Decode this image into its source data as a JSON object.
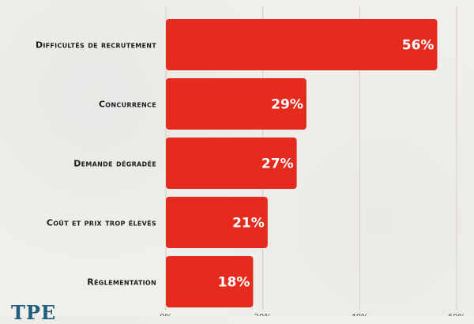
{
  "brand": {
    "logo_text": "TPE"
  },
  "colors": {
    "bar": "#e42b1e",
    "grid": "#cfcbc6",
    "background": "#f1efec"
  },
  "chart_data": {
    "type": "bar",
    "orientation": "horizontal",
    "categories": [
      "Difficultés de recrutement",
      "Concurrence",
      "Demande dégradée",
      "Coût et prix trop élevés",
      "Réglementation"
    ],
    "values": [
      56,
      29,
      27,
      21,
      18
    ],
    "value_labels": [
      "56%",
      "29%",
      "27%",
      "21%",
      "18%"
    ],
    "xlim": [
      0,
      60
    ],
    "xticks": [
      0,
      20,
      40,
      60
    ],
    "xtick_labels": [
      "0%",
      "20%",
      "40%",
      "60%"
    ],
    "grid": true,
    "title": "",
    "xlabel": "",
    "ylabel": ""
  }
}
